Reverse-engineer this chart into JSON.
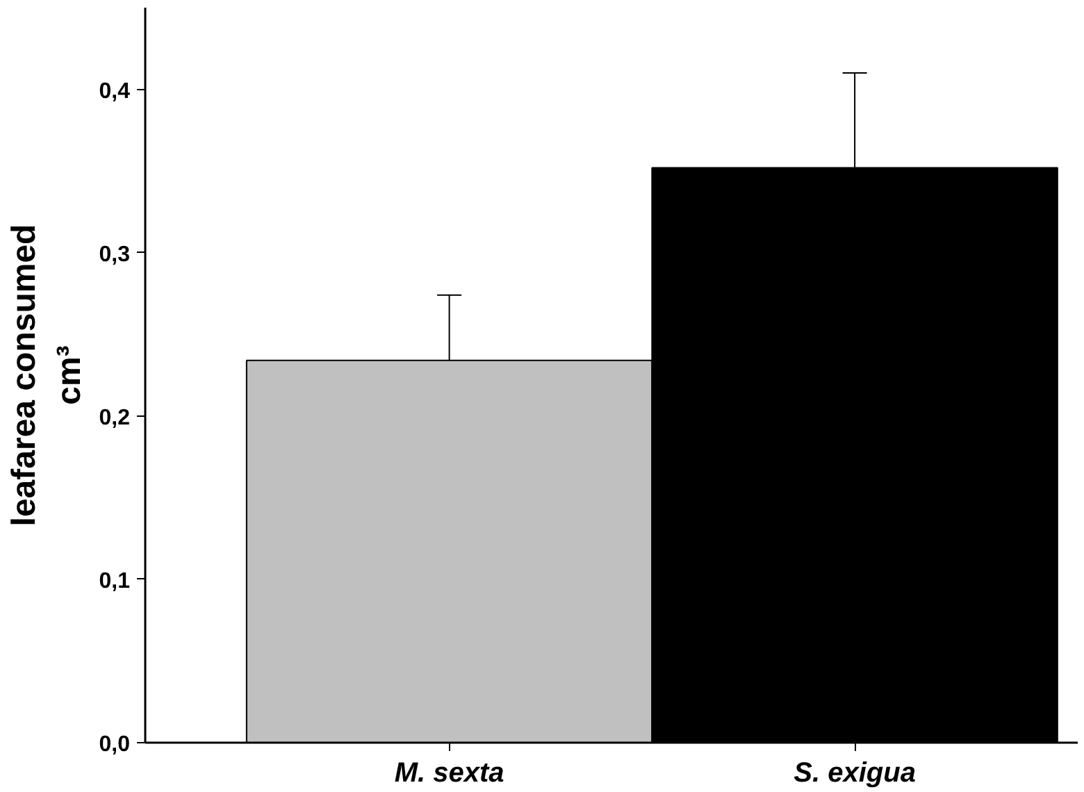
{
  "chart_data": {
    "type": "bar",
    "ylabel": "leafarea consumed\ncm³",
    "categories": [
      "M. sexta",
      "S. exigua"
    ],
    "values": [
      0.234,
      0.352
    ],
    "colors": [
      "#c0c0c0",
      "#000000"
    ],
    "errors": [
      [
        0.234,
        0.274
      ],
      [
        0.352,
        0.41
      ]
    ],
    "ylim": [
      0,
      0.45
    ],
    "yticks": [
      {
        "value": 0,
        "label": "0,0"
      },
      {
        "value": 0.1,
        "label": "0,1"
      },
      {
        "value": 0.2,
        "label": "0,2"
      },
      {
        "value": 0.3,
        "label": "0,3"
      },
      {
        "value": 0.4,
        "label": "0,4"
      }
    ],
    "grid": false
  }
}
